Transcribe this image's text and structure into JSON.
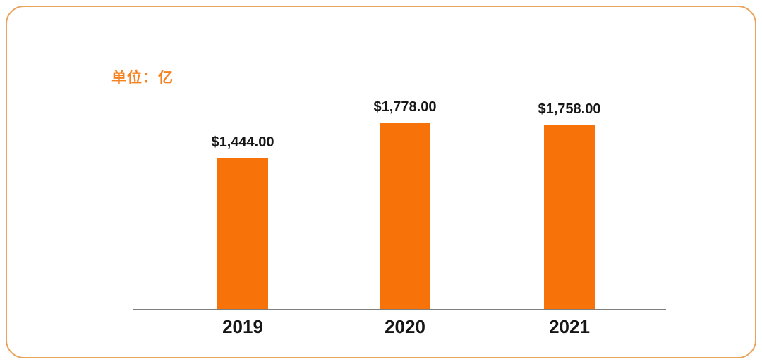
{
  "chart_data": {
    "type": "bar",
    "title": "",
    "unit_label": "单位：亿",
    "categories": [
      "2019",
      "2020",
      "2021"
    ],
    "values": [
      1444,
      1778,
      1758
    ],
    "value_labels": [
      "$1,444.00",
      "$1,778.00",
      "$1,758.00"
    ],
    "xlabel": "",
    "ylabel": "",
    "ylim": [
      0,
      1778
    ],
    "grid": false,
    "legend_position": "none",
    "bar_color": "#F8720A",
    "axis_color": "#7F7F7F",
    "label_color": "#161616",
    "unit_label_color": "#F5821F",
    "card_border_color": "#E9A55F"
  }
}
